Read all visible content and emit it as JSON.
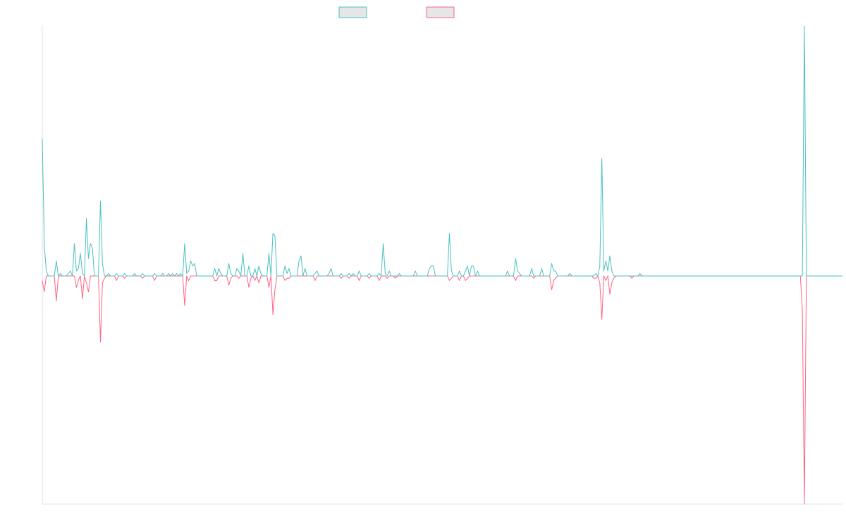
{
  "colors": {
    "teal": "#4BC0C0",
    "pink": "#FF6384",
    "swatch_fill": "#E6E6E6",
    "axis": "#E0E0E0",
    "background": "#FFFFFF"
  },
  "chart_data": {
    "type": "line",
    "title": "",
    "xlabel": "",
    "ylabel": "",
    "ylim": [
      -1,
      1
    ],
    "grid": false,
    "legend": {
      "placement": "top-center",
      "entries": [
        {
          "label": "",
          "color": "#4BC0C0"
        },
        {
          "label": "",
          "color": "#FF6384"
        }
      ]
    },
    "x_count": 400,
    "series": [
      {
        "color": "#4BC0C0",
        "spikes": [
          [
            0,
            0.55
          ],
          [
            1,
            0.12
          ],
          [
            2,
            0.02
          ],
          [
            7,
            0.06
          ],
          [
            9,
            0.01
          ],
          [
            13,
            0.01
          ],
          [
            14,
            0.02
          ],
          [
            16,
            0.13
          ],
          [
            17,
            0.02
          ],
          [
            18,
            0.03
          ],
          [
            19,
            0.09
          ],
          [
            20,
            0.01
          ],
          [
            22,
            0.23
          ],
          [
            23,
            0.07
          ],
          [
            24,
            0.13
          ],
          [
            25,
            0.11
          ],
          [
            29,
            0.3
          ],
          [
            30,
            0.05
          ],
          [
            33,
            0.01
          ],
          [
            37,
            0.01
          ],
          [
            41,
            0.01
          ],
          [
            46,
            0.01
          ],
          [
            50,
            0.01
          ],
          [
            56,
            0.01
          ],
          [
            60,
            0.01
          ],
          [
            63,
            0.01
          ],
          [
            65,
            0.01
          ],
          [
            67,
            0.01
          ],
          [
            69,
            0.01
          ],
          [
            71,
            0.13
          ],
          [
            72,
            0.01
          ],
          [
            73,
            0.02
          ],
          [
            74,
            0.06
          ],
          [
            75,
            0.04
          ],
          [
            76,
            0.05
          ],
          [
            86,
            0.03
          ],
          [
            88,
            0.03
          ],
          [
            89,
            0.01
          ],
          [
            93,
            0.05
          ],
          [
            94,
            0.01
          ],
          [
            97,
            0.03
          ],
          [
            98,
            0.02
          ],
          [
            100,
            0.09
          ],
          [
            103,
            0.04
          ],
          [
            106,
            0.03
          ],
          [
            108,
            0.04
          ],
          [
            109,
            0.01
          ],
          [
            113,
            0.09
          ],
          [
            115,
            0.17
          ],
          [
            116,
            0.16
          ],
          [
            121,
            0.04
          ],
          [
            122,
            0.01
          ],
          [
            123,
            0.03
          ],
          [
            128,
            0.06
          ],
          [
            129,
            0.08
          ],
          [
            131,
            0.03
          ],
          [
            136,
            0.01
          ],
          [
            137,
            0.02
          ],
          [
            143,
            0.01
          ],
          [
            144,
            0.03
          ],
          [
            149,
            0.01
          ],
          [
            153,
            0.01
          ],
          [
            155,
            0.01
          ],
          [
            158,
            0.02
          ],
          [
            163,
            0.01
          ],
          [
            168,
            0.01
          ],
          [
            170,
            0.13
          ],
          [
            171,
            0.01
          ],
          [
            173,
            0.02
          ],
          [
            178,
            0.01
          ],
          [
            186,
            0.02
          ],
          [
            193,
            0.03
          ],
          [
            194,
            0.04
          ],
          [
            195,
            0.04
          ],
          [
            203,
            0.17
          ],
          [
            204,
            0.02
          ],
          [
            208,
            0.02
          ],
          [
            211,
            0.02
          ],
          [
            212,
            0.04
          ],
          [
            214,
            0.04
          ],
          [
            215,
            0.04
          ],
          [
            217,
            0.02
          ],
          [
            232,
            0.02
          ],
          [
            236,
            0.07
          ],
          [
            237,
            0.02
          ],
          [
            238,
            0.01
          ],
          [
            244,
            0.03
          ],
          [
            249,
            0.03
          ],
          [
            254,
            0.05
          ],
          [
            255,
            0.02
          ],
          [
            256,
            0.02
          ],
          [
            263,
            0.01
          ],
          [
            276,
            0.01
          ],
          [
            278,
            0.04
          ],
          [
            279,
            0.47
          ],
          [
            280,
            0.02
          ],
          [
            281,
            0.06
          ],
          [
            282,
            0.02
          ],
          [
            283,
            0.08
          ],
          [
            284,
            0.02
          ],
          [
            298,
            0.01
          ],
          [
            380,
            1.0
          ]
        ]
      },
      {
        "color": "#FF6384",
        "spikes": [
          [
            0,
            -0.02
          ],
          [
            1,
            -0.07
          ],
          [
            7,
            -0.11
          ],
          [
            17,
            -0.05
          ],
          [
            18,
            -0.02
          ],
          [
            20,
            -0.1
          ],
          [
            22,
            -0.03
          ],
          [
            23,
            -0.07
          ],
          [
            29,
            -0.29
          ],
          [
            30,
            -0.03
          ],
          [
            31,
            -0.01
          ],
          [
            37,
            -0.02
          ],
          [
            41,
            -0.01
          ],
          [
            50,
            -0.01
          ],
          [
            56,
            -0.02
          ],
          [
            71,
            -0.13
          ],
          [
            73,
            -0.02
          ],
          [
            86,
            -0.02
          ],
          [
            87,
            -0.02
          ],
          [
            93,
            -0.04
          ],
          [
            94,
            -0.01
          ],
          [
            98,
            -0.01
          ],
          [
            103,
            -0.05
          ],
          [
            104,
            -0.01
          ],
          [
            106,
            -0.02
          ],
          [
            108,
            -0.03
          ],
          [
            113,
            -0.05
          ],
          [
            115,
            -0.17
          ],
          [
            116,
            -0.06
          ],
          [
            121,
            -0.02
          ],
          [
            122,
            -0.01
          ],
          [
            123,
            -0.01
          ],
          [
            136,
            -0.02
          ],
          [
            149,
            -0.01
          ],
          [
            153,
            -0.01
          ],
          [
            158,
            -0.02
          ],
          [
            163,
            -0.01
          ],
          [
            168,
            -0.02
          ],
          [
            172,
            -0.01
          ],
          [
            176,
            -0.01
          ],
          [
            203,
            -0.02
          ],
          [
            204,
            -0.01
          ],
          [
            208,
            -0.02
          ],
          [
            211,
            -0.02
          ],
          [
            212,
            -0.01
          ],
          [
            236,
            -0.02
          ],
          [
            245,
            -0.01
          ],
          [
            254,
            -0.06
          ],
          [
            255,
            -0.02
          ],
          [
            256,
            -0.01
          ],
          [
            275,
            -0.01
          ],
          [
            276,
            -0.01
          ],
          [
            278,
            -0.03
          ],
          [
            279,
            -0.19
          ],
          [
            281,
            -0.02
          ],
          [
            283,
            -0.08
          ],
          [
            284,
            -0.03
          ],
          [
            285,
            -0.01
          ],
          [
            294,
            -0.01
          ],
          [
            379,
            -0.15
          ],
          [
            380,
            -1.0
          ]
        ]
      }
    ]
  }
}
